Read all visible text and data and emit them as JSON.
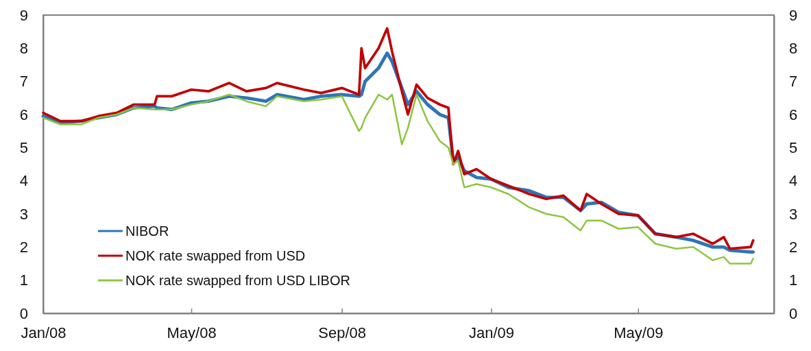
{
  "chart_data": {
    "type": "line",
    "x": [
      "2008-01-01",
      "2008-01-15",
      "2008-02-01",
      "2008-02-15",
      "2008-03-01",
      "2008-03-15",
      "2008-04-01",
      "2008-04-03",
      "2008-04-15",
      "2008-05-01",
      "2008-05-15",
      "2008-06-01",
      "2008-06-15",
      "2008-07-01",
      "2008-07-10",
      "2008-08-01",
      "2008-08-15",
      "2008-09-01",
      "2008-09-15",
      "2008-09-17",
      "2008-09-20",
      "2008-10-01",
      "2008-10-08",
      "2008-10-12",
      "2008-10-20",
      "2008-10-25",
      "2008-11-01",
      "2008-11-10",
      "2008-11-20",
      "2008-11-27",
      "2008-12-01",
      "2008-12-05",
      "2008-12-10",
      "2008-12-20",
      "2009-01-01",
      "2009-01-15",
      "2009-02-01",
      "2009-02-15",
      "2009-03-01",
      "2009-03-15",
      "2009-03-20",
      "2009-04-01",
      "2009-04-15",
      "2009-05-01",
      "2009-05-15",
      "2009-06-01",
      "2009-06-15",
      "2009-07-01",
      "2009-07-10",
      "2009-07-15",
      "2009-08-01",
      "2009-08-03"
    ],
    "series": [
      {
        "name": "NIBOR",
        "color": "#2e75b6",
        "values": [
          5.95,
          5.75,
          5.8,
          5.9,
          6.0,
          6.2,
          6.25,
          6.2,
          6.15,
          6.35,
          6.4,
          6.55,
          6.5,
          6.4,
          6.6,
          6.45,
          6.55,
          6.6,
          6.55,
          6.6,
          7.0,
          7.4,
          7.85,
          7.6,
          6.8,
          6.3,
          6.7,
          6.3,
          6.0,
          5.9,
          4.6,
          4.7,
          4.3,
          4.1,
          4.05,
          3.8,
          3.7,
          3.5,
          3.5,
          3.1,
          3.3,
          3.35,
          3.05,
          2.95,
          2.4,
          2.3,
          2.2,
          2.0,
          2.0,
          1.9,
          1.85,
          1.85
        ]
      },
      {
        "name": "NOK rate swapped from USD",
        "color": "#c00000",
        "values": [
          6.05,
          5.8,
          5.8,
          5.95,
          6.05,
          6.3,
          6.3,
          6.55,
          6.55,
          6.75,
          6.7,
          6.95,
          6.7,
          6.8,
          6.95,
          6.75,
          6.65,
          6.8,
          6.6,
          8.0,
          7.4,
          8.0,
          8.6,
          7.9,
          6.7,
          6.0,
          6.9,
          6.5,
          6.3,
          6.2,
          4.5,
          4.9,
          4.2,
          4.35,
          4.05,
          3.85,
          3.6,
          3.45,
          3.55,
          3.1,
          3.6,
          3.3,
          3.0,
          2.95,
          2.4,
          2.3,
          2.4,
          2.1,
          2.3,
          1.95,
          2.0,
          2.2
        ]
      },
      {
        "name": "NOK rate swapped from USD LIBOR",
        "color": "#8dc63f",
        "values": [
          5.9,
          5.7,
          5.7,
          5.9,
          6.0,
          6.2,
          6.15,
          6.15,
          6.15,
          6.3,
          6.4,
          6.6,
          6.4,
          6.25,
          6.55,
          6.4,
          6.45,
          6.55,
          5.5,
          5.6,
          5.9,
          6.6,
          6.45,
          6.6,
          5.1,
          5.6,
          6.6,
          5.8,
          5.2,
          5.0,
          4.5,
          4.6,
          3.8,
          3.9,
          3.8,
          3.6,
          3.2,
          3.0,
          2.9,
          2.5,
          2.8,
          2.8,
          2.55,
          2.6,
          2.1,
          1.95,
          2.0,
          1.6,
          1.7,
          1.5,
          1.5,
          1.65
        ]
      }
    ],
    "xlim": [
      "2008-01-01",
      "2009-08-20"
    ],
    "xticks": [
      {
        "value": "2008-01-01",
        "label": "Jan/08"
      },
      {
        "value": "2008-05-01",
        "label": "May/08"
      },
      {
        "value": "2008-09-01",
        "label": "Sep/08"
      },
      {
        "value": "2009-01-01",
        "label": "Jan/09"
      },
      {
        "value": "2009-05-01",
        "label": "May/09"
      }
    ],
    "ylim": [
      0,
      9
    ],
    "yticks": [
      0,
      1,
      2,
      3,
      4,
      5,
      6,
      7,
      8,
      9
    ],
    "y2lim": [
      0,
      9
    ],
    "y2ticks": [
      0,
      1,
      2,
      3,
      4,
      5,
      6,
      7,
      8,
      9
    ],
    "grid": false,
    "legend": "bottom left",
    "line_style": "solid",
    "marker": "none"
  }
}
